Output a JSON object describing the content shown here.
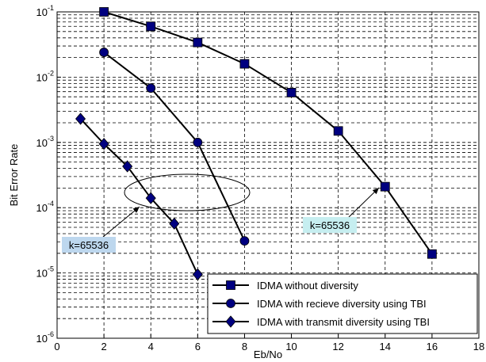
{
  "chart_data": {
    "type": "line",
    "title": "",
    "xlabel": "Eb/No",
    "ylabel": "Bit Error Rate",
    "x_scale": "linear",
    "y_scale": "log",
    "xlim": [
      0,
      18
    ],
    "ylim": [
      1e-06,
      0.1
    ],
    "x_ticks": [
      0,
      2,
      4,
      6,
      8,
      10,
      12,
      14,
      16,
      18
    ],
    "x_tick_labels": [
      "0",
      "2",
      "4",
      "6",
      "8",
      "10",
      "12",
      "14",
      "16",
      "18"
    ],
    "y_ticks": [
      1e-06,
      1e-05,
      0.0001,
      0.001,
      0.01,
      0.1
    ],
    "y_tick_labels": [
      {
        "base": "10",
        "exp": "-6"
      },
      {
        "base": "10",
        "exp": "-5"
      },
      {
        "base": "10",
        "exp": "-4"
      },
      {
        "base": "10",
        "exp": "-3"
      },
      {
        "base": "10",
        "exp": "-2"
      },
      {
        "base": "10",
        "exp": "-1"
      }
    ],
    "grid": true,
    "legend_position": "bottom-right",
    "series": [
      {
        "name": "IDMA without diversity",
        "marker": "square",
        "color": "#000080",
        "x": [
          2,
          4,
          6,
          8,
          10,
          12,
          14,
          16
        ],
        "y": [
          0.1,
          0.06,
          0.034,
          0.016,
          0.0058,
          0.0015,
          0.00021,
          1.95e-05
        ]
      },
      {
        "name": "IDMA with recieve diversity using TBI",
        "marker": "circle",
        "color": "#000080",
        "x": [
          2,
          4,
          6,
          8
        ],
        "y": [
          0.024,
          0.0068,
          0.001,
          3.1e-05
        ]
      },
      {
        "name": "IDMA with transmit diversity using TBI",
        "marker": "diamond",
        "color": "#000080",
        "x": [
          1,
          2,
          3,
          4,
          5,
          6
        ],
        "y": [
          0.0023,
          0.00095,
          0.00043,
          0.00014,
          5.7e-05,
          9.5e-06
        ]
      }
    ],
    "annotations": [
      {
        "text": "k=65536",
        "background": "#bdd7ee",
        "point": [
          4,
          0.00014
        ]
      },
      {
        "text": "k=65536",
        "background": "#c6eef0",
        "point": [
          14,
          0.00021
        ]
      }
    ]
  }
}
